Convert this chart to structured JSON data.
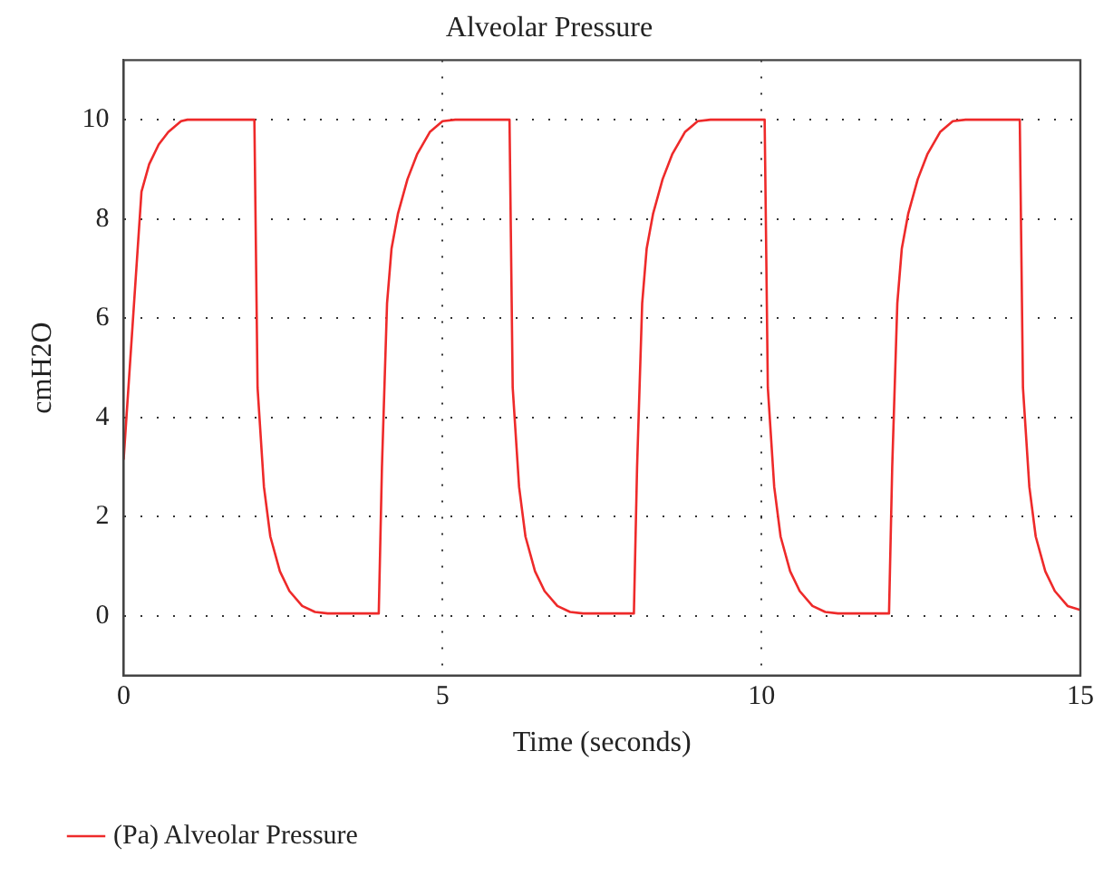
{
  "chart_data": {
    "type": "line",
    "title": "Alveolar Pressure",
    "xlabel": "Time (seconds)",
    "ylabel": "cmH2O",
    "x": [
      0,
      0.28,
      0.4,
      0.55,
      0.7,
      0.9,
      1.0,
      2.05,
      2.1,
      2.2,
      2.3,
      2.45,
      2.6,
      2.8,
      3.0,
      3.2,
      4.0,
      4.05,
      4.13,
      4.2,
      4.3,
      4.45,
      4.6,
      4.8,
      5.0,
      5.2,
      6.05,
      6.1,
      6.2,
      6.3,
      6.45,
      6.6,
      6.8,
      7.0,
      7.2,
      8.0,
      8.05,
      8.13,
      8.2,
      8.3,
      8.45,
      8.6,
      8.8,
      9.0,
      9.2,
      10.05,
      10.1,
      10.2,
      10.3,
      10.45,
      10.6,
      10.8,
      11.0,
      11.2,
      12.0,
      12.05,
      12.13,
      12.2,
      12.3,
      12.45,
      12.6,
      12.8,
      13.0,
      13.2,
      14.05,
      14.1,
      14.2,
      14.3,
      14.45,
      14.6,
      14.8,
      15.0
    ],
    "series": [
      {
        "name": "(Pa) Alveolar Pressure",
        "color": "#ee2a2a",
        "values": [
          3.15,
          8.55,
          9.1,
          9.5,
          9.75,
          9.97,
          10,
          10,
          4.6,
          2.6,
          1.6,
          0.9,
          0.5,
          0.2,
          0.08,
          0.05,
          0.05,
          3.0,
          6.3,
          7.4,
          8.1,
          8.8,
          9.3,
          9.75,
          9.97,
          10,
          10,
          4.6,
          2.6,
          1.6,
          0.9,
          0.5,
          0.2,
          0.08,
          0.05,
          0.05,
          3.0,
          6.3,
          7.4,
          8.1,
          8.8,
          9.3,
          9.75,
          9.97,
          10,
          10,
          4.6,
          2.6,
          1.6,
          0.9,
          0.5,
          0.2,
          0.08,
          0.05,
          0.05,
          3.0,
          6.3,
          7.4,
          8.1,
          8.8,
          9.3,
          9.75,
          9.97,
          10,
          10,
          4.6,
          2.6,
          1.6,
          0.9,
          0.5,
          0.2,
          0.12
        ]
      }
    ],
    "xlim": [
      0,
      15
    ],
    "xticks": [
      0,
      5,
      10,
      15
    ],
    "ylim": [
      -1.2,
      11.2
    ],
    "yticks": [
      0,
      2,
      4,
      6,
      8,
      10
    ],
    "grid": true,
    "legend": "bottom left",
    "marker": "none",
    "line_style": "solid"
  }
}
